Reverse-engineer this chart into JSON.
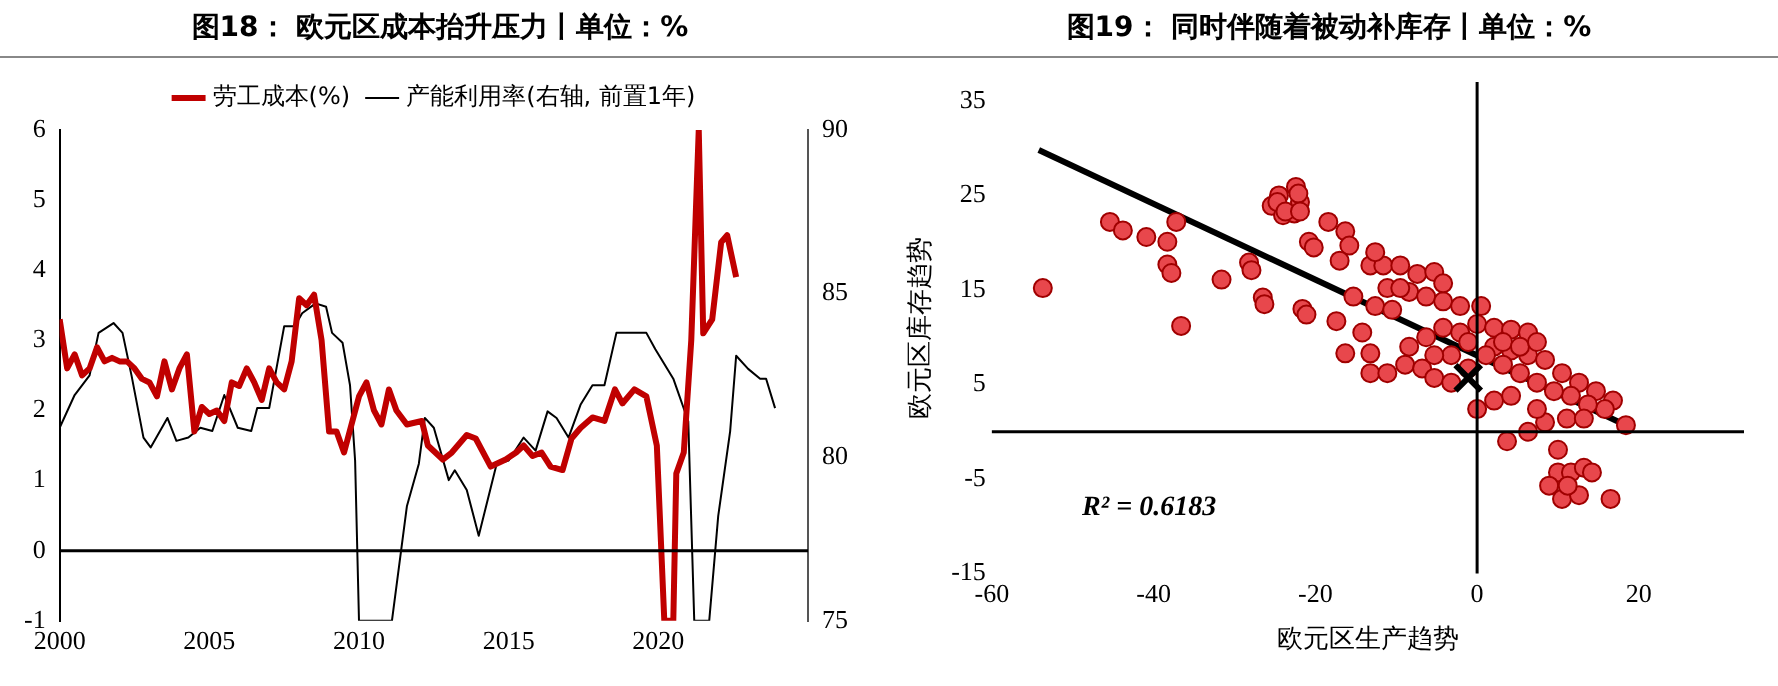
{
  "chart_data": [
    {
      "type": "line",
      "title": "图18：  欧元区成本抬升压力丨单位：%",
      "legend": "top",
      "grid": false,
      "marker": "none",
      "xlim": [
        2000,
        2025
      ],
      "xticks": [
        2000,
        2005,
        2010,
        2015,
        2020
      ],
      "ylim": [
        -1,
        6
      ],
      "yticks": [
        -1,
        0,
        1,
        2,
        3,
        4,
        5,
        6
      ],
      "y2lim": [
        75,
        90
      ],
      "y2ticks": [
        75,
        80,
        85,
        90
      ],
      "ref_lines": [
        {
          "axis": "y",
          "value": 0,
          "color": "#000000"
        }
      ],
      "series": [
        {
          "name": "劳工成本(%)",
          "color": "#c00000",
          "x": [
            2000,
            2000.25,
            2000.5,
            2000.75,
            2001,
            2001.25,
            2001.5,
            2001.75,
            2002,
            2002.25,
            2002.5,
            2002.75,
            2003,
            2003.25,
            2003.5,
            2003.75,
            2004,
            2004.25,
            2004.5,
            2004.75,
            2005,
            2005.25,
            2005.5,
            2005.75,
            2006,
            2006.25,
            2006.5,
            2006.75,
            2007,
            2007.25,
            2007.5,
            2007.75,
            2008,
            2008.25,
            2008.5,
            2008.75,
            2009,
            2009.25,
            2009.5,
            2009.75,
            2010,
            2010.25,
            2010.5,
            2010.75,
            2011,
            2011.25,
            2011.6,
            2012.1,
            2012.3,
            2012.8,
            2013.1,
            2013.6,
            2013.9,
            2014.4,
            2014.9,
            2015.25,
            2015.5,
            2015.8,
            2016.1,
            2016.4,
            2016.8,
            2017.1,
            2017.4,
            2017.8,
            2018.2,
            2018.55,
            2018.8,
            2019.2,
            2019.6,
            2019.95,
            2020.2,
            2020.5,
            2020.6,
            2020.85,
            2021.1,
            2021.35,
            2021.5,
            2021.8,
            2022.1,
            2022.3,
            2022.6
          ],
          "values": [
            3.3,
            2.6,
            2.8,
            2.5,
            2.6,
            2.9,
            2.7,
            2.75,
            2.7,
            2.7,
            2.6,
            2.45,
            2.4,
            2.2,
            2.7,
            2.3,
            2.6,
            2.8,
            1.7,
            2.05,
            1.95,
            2.0,
            1.85,
            2.4,
            2.35,
            2.6,
            2.4,
            2.15,
            2.6,
            2.4,
            2.3,
            2.7,
            3.6,
            3.5,
            3.65,
            3.0,
            1.7,
            1.7,
            1.4,
            1.8,
            2.2,
            2.4,
            2.0,
            1.8,
            2.3,
            2.0,
            1.8,
            1.85,
            1.5,
            1.3,
            1.4,
            1.65,
            1.6,
            1.2,
            1.3,
            1.4,
            1.5,
            1.35,
            1.4,
            1.2,
            1.15,
            1.6,
            1.75,
            1.9,
            1.85,
            2.3,
            2.1,
            2.3,
            2.2,
            1.5,
            -1,
            -1,
            1.1,
            1.4,
            3.0,
            6,
            3.1,
            3.3,
            4.4,
            4.5,
            3.9
          ]
        },
        {
          "name": "产能利用率(右轴, 前置1年)",
          "color": "#000000",
          "axis": "y2",
          "x": [
            2000,
            2000.5,
            2001,
            2001.3,
            2001.8,
            2002.1,
            2002.4,
            2002.8,
            2003.04,
            2003.6,
            2003.9,
            2004.3,
            2004.7,
            2005.1,
            2005.5,
            2005.95,
            2006.4,
            2006.6,
            2007,
            2007.5,
            2007.85,
            2008.1,
            2008.55,
            2008.9,
            2009.1,
            2009.45,
            2009.7,
            2009.87,
            2010,
            2011.1,
            2011.6,
            2012,
            2012.2,
            2012.5,
            2013,
            2013.2,
            2013.6,
            2014,
            2014.6,
            2015,
            2015.5,
            2015.9,
            2016.3,
            2016.6,
            2017,
            2017.4,
            2017.8,
            2018.2,
            2018.6,
            2019.1,
            2019.6,
            2019.9,
            2020.5,
            2021,
            2021.2,
            2021.7,
            2022,
            2022.4,
            2022.6,
            2023,
            2023.4,
            2023.6,
            2023.9
          ],
          "values": [
            80.9,
            81.9,
            82.5,
            83.8,
            84.1,
            83.8,
            82.5,
            80.6,
            80.3,
            81.2,
            80.5,
            80.6,
            80.9,
            80.8,
            81.9,
            80.9,
            80.8,
            81.5,
            81.5,
            84.0,
            84.0,
            84.4,
            84.7,
            84.6,
            83.8,
            83.5,
            82.2,
            79.9,
            75,
            75,
            78.5,
            79.8,
            81.2,
            80.9,
            79.3,
            79.6,
            79.0,
            77.6,
            79.8,
            79.9,
            80.6,
            80.2,
            81.4,
            81.2,
            80.6,
            81.6,
            82.2,
            82.2,
            83.8,
            83.8,
            83.8,
            83.3,
            82.4,
            81.1,
            75,
            75,
            78.2,
            80.8,
            83.1,
            82.7,
            82.4,
            82.4,
            81.5
          ]
        }
      ]
    },
    {
      "type": "scatter",
      "title": "图19：  同时伴随着被动补库存丨单位：%",
      "xlabel": "欧元区生产趋势",
      "ylabel": "欧元区库存趋势",
      "grid": false,
      "marker": "circle",
      "xlim": [
        -60,
        33
      ],
      "xticks": [
        -60,
        -40,
        -20,
        0,
        20
      ],
      "ylim": [
        -15,
        37
      ],
      "yticks": [
        -15,
        -5,
        5,
        15,
        25,
        35
      ],
      "annotations": [
        "R² = 0.6183"
      ],
      "ref_lines": [
        {
          "axis": "x",
          "value": 0,
          "color": "#000000"
        },
        {
          "axis": "y",
          "value": 0,
          "color": "#000000"
        }
      ],
      "series": [
        {
          "color": "#e8474c",
          "x": [
            -53.7,
            -45.4,
            -43.8,
            -40.9,
            -38.3,
            -38.3,
            -37.8,
            -37.2,
            -36.6,
            -31.6,
            -28.2,
            -26.5,
            -25.4,
            -24.5,
            -24,
            -22.6,
            -22.4,
            -21.9,
            -21.6,
            -20.8,
            -24.7,
            -23.7,
            -22.1,
            -21.9,
            -27.9,
            -26.3,
            -21.1,
            -20.2,
            -18.4,
            -16.3,
            -15.8,
            -17,
            -17.4,
            -15.3,
            -16.3,
            -13.2,
            -11.6,
            -9.5,
            -7.4,
            -5.3,
            -11.1,
            -8.4,
            -6.3,
            -4.2,
            -2.1,
            0.5,
            -12.6,
            -10.5,
            -13.2,
            -13.2,
            -11.1,
            -8.9,
            -6.8,
            -5.3,
            -3.2,
            -8.4,
            -6.3,
            -4.2,
            -2.1,
            0,
            2.1,
            4.2,
            6.3,
            2.1,
            4.2,
            6.3,
            8.4,
            10.5,
            12.6,
            14.7,
            16.8,
            18.4,
            15.8,
            13.7,
            11.6,
            9.5,
            7.4,
            5.3,
            3.2,
            1.1,
            -1.1,
            0,
            2.1,
            4.2,
            3.7,
            6.3,
            8.4,
            11.1,
            13.2,
            10,
            10,
            8.9,
            11.6,
            13.2,
            14.2,
            10.5,
            12.6,
            16.5,
            11.2,
            7.4,
            -3.2,
            -5.3,
            -1.1,
            3.2,
            5.3,
            7.4,
            -4.2,
            -9.5,
            -14.2,
            -12.6
          ],
          "values": [
            15.2,
            22.2,
            21.3,
            20.6,
            20.1,
            17.7,
            16.8,
            22.2,
            11.2,
            16.1,
            17.9,
            14.2,
            23.9,
            25,
            22.9,
            23.1,
            25.9,
            24.3,
            13,
            20.1,
            24.3,
            23.3,
            25.2,
            23.3,
            17.1,
            13.5,
            12.4,
            19.5,
            22.2,
            21.2,
            19.7,
            18.1,
            11.7,
            14.3,
            8.3,
            17.6,
            17.6,
            17.6,
            16.7,
            16.9,
            15.2,
            14.8,
            14.3,
            13.8,
            13.3,
            13.3,
            13.3,
            12.9,
            8.3,
            6.2,
            6.2,
            7.1,
            6.7,
            5.7,
            5.2,
            9,
            10,
            11,
            10.5,
            11.4,
            11,
            10.8,
            10.5,
            9,
            8.6,
            8.1,
            7.6,
            6.2,
            5.2,
            4.3,
            3.3,
            0.7,
            2.4,
            2.9,
            3.8,
            4.3,
            5.2,
            6.2,
            7.1,
            8.1,
            6.7,
            2.4,
            3.3,
            3.8,
            -1,
            0,
            1,
            1.4,
            1.4,
            -1.9,
            -4.3,
            -5.7,
            -4.3,
            -3.8,
            -4.3,
            -7.1,
            -6.7,
            -7.1,
            -5.7,
            2.4,
            8.1,
            8.1,
            9.5,
            9.5,
            9,
            9.5,
            15.7,
            15.2,
            10.5,
            19
          ]
        },
        {
          "type": "line",
          "color": "#000000",
          "marker": "none",
          "x": [
            -54.2,
            18.4
          ],
          "values": [
            29.8,
            0.7
          ]
        },
        {
          "type": "scatter",
          "color": "#000000",
          "marker": "cross",
          "x": [
            -1.1
          ],
          "values": [
            5.7
          ]
        }
      ]
    }
  ]
}
